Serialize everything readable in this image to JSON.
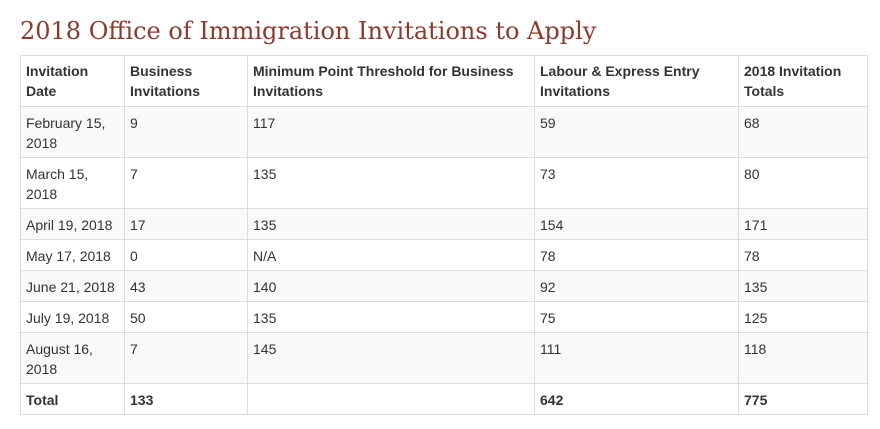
{
  "page": {
    "title": "2018 Office of Immigration Invitations to Apply"
  },
  "table": {
    "headers": [
      "Invitation Date",
      "Business Invitations",
      "Minimum Point Threshold for Business Invitations",
      "Labour & Express Entry Invitations",
      "2018 Invitation Totals"
    ],
    "rows": [
      [
        "February 15, 2018",
        "9",
        "117",
        "59",
        "68"
      ],
      [
        "March 15, 2018",
        "7",
        "135",
        "73",
        "80"
      ],
      [
        "April 19, 2018",
        "17",
        "135",
        "154",
        "171"
      ],
      [
        "May 17, 2018",
        "0",
        "N/A",
        "78",
        "78"
      ],
      [
        "June 21, 2018",
        "43",
        "140",
        "92",
        "135"
      ],
      [
        "July 19, 2018",
        "50",
        "135",
        "75",
        "125"
      ],
      [
        "August 16, 2018",
        "7",
        "145",
        "111",
        "118"
      ]
    ],
    "total": [
      "Total",
      "133",
      "",
      "642",
      "775"
    ]
  },
  "colors": {
    "title": "#8b3a2b",
    "border": "#dddddd",
    "stripe": "#f9f9f9",
    "text": "#333333"
  }
}
